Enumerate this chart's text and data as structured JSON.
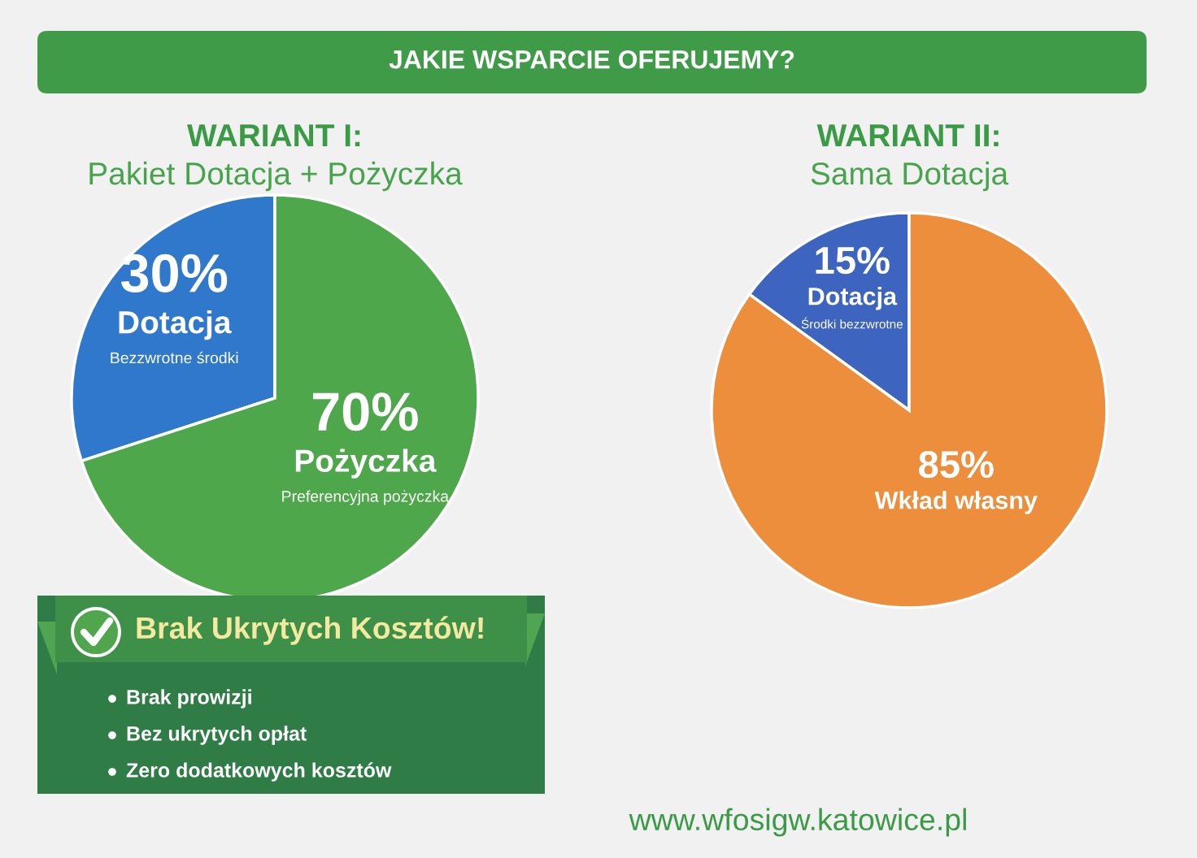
{
  "chart_data": [
    {
      "type": "other",
      "title": "JAKIE WSPARCIE OFERUJEMY?",
      "annotations": [
        "www.wfosigw.katowice.pl"
      ]
    },
    {
      "type": "pie",
      "title": "WARIANT I:",
      "subtitle": "Pakiet Dotacja + Pożyczka",
      "categories": [
        "Dotacja",
        "Pożyczka"
      ],
      "values": [
        30,
        70
      ],
      "value_labels": [
        "30%",
        "70%"
      ],
      "colors": [
        "#2f78cc",
        "#4ea84b"
      ],
      "annotations": [
        "Bezzwrotne środki",
        "Preferencyjna pożyczka"
      ]
    },
    {
      "type": "pie",
      "title": "WARIANT II:",
      "subtitle": "Sama Dotacja",
      "categories": [
        "Dotacja",
        "Wkład własny"
      ],
      "values": [
        15,
        85
      ],
      "value_labels": [
        "15%",
        "85%"
      ],
      "colors": [
        "#3d64bf",
        "#ec8e3b"
      ],
      "annotations": [
        "Środki bezzwrotne"
      ]
    },
    {
      "type": "other",
      "title": "Brak Ukrytych Kosztów!",
      "annotations": [
        "Brak prowizji",
        "Bez ukrytych opłat",
        "Zero dodatkowych kosztów"
      ]
    }
  ]
}
